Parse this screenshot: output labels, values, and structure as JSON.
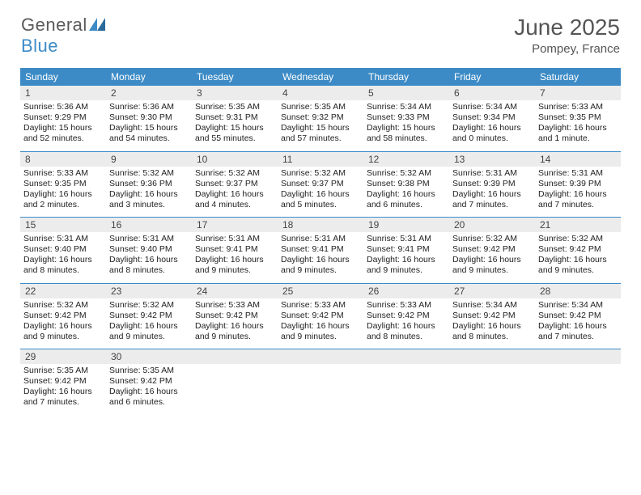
{
  "logo": {
    "text_a": "General",
    "text_b": "Blue",
    "mark_color": "#3c8bc6"
  },
  "title": {
    "month": "June 2025",
    "location": "Pompey, France"
  },
  "colors": {
    "header_bg": "#3c8bc6",
    "daynum_bg": "#ececec",
    "rule": "#3c8bc6"
  },
  "days_of_week": [
    "Sunday",
    "Monday",
    "Tuesday",
    "Wednesday",
    "Thursday",
    "Friday",
    "Saturday"
  ],
  "weeks": [
    [
      {
        "n": 1,
        "sr": "5:36 AM",
        "ss": "9:29 PM",
        "dl": "15 hours and 52 minutes."
      },
      {
        "n": 2,
        "sr": "5:36 AM",
        "ss": "9:30 PM",
        "dl": "15 hours and 54 minutes."
      },
      {
        "n": 3,
        "sr": "5:35 AM",
        "ss": "9:31 PM",
        "dl": "15 hours and 55 minutes."
      },
      {
        "n": 4,
        "sr": "5:35 AM",
        "ss": "9:32 PM",
        "dl": "15 hours and 57 minutes."
      },
      {
        "n": 5,
        "sr": "5:34 AM",
        "ss": "9:33 PM",
        "dl": "15 hours and 58 minutes."
      },
      {
        "n": 6,
        "sr": "5:34 AM",
        "ss": "9:34 PM",
        "dl": "16 hours and 0 minutes."
      },
      {
        "n": 7,
        "sr": "5:33 AM",
        "ss": "9:35 PM",
        "dl": "16 hours and 1 minute."
      }
    ],
    [
      {
        "n": 8,
        "sr": "5:33 AM",
        "ss": "9:35 PM",
        "dl": "16 hours and 2 minutes."
      },
      {
        "n": 9,
        "sr": "5:32 AM",
        "ss": "9:36 PM",
        "dl": "16 hours and 3 minutes."
      },
      {
        "n": 10,
        "sr": "5:32 AM",
        "ss": "9:37 PM",
        "dl": "16 hours and 4 minutes."
      },
      {
        "n": 11,
        "sr": "5:32 AM",
        "ss": "9:37 PM",
        "dl": "16 hours and 5 minutes."
      },
      {
        "n": 12,
        "sr": "5:32 AM",
        "ss": "9:38 PM",
        "dl": "16 hours and 6 minutes."
      },
      {
        "n": 13,
        "sr": "5:31 AM",
        "ss": "9:39 PM",
        "dl": "16 hours and 7 minutes."
      },
      {
        "n": 14,
        "sr": "5:31 AM",
        "ss": "9:39 PM",
        "dl": "16 hours and 7 minutes."
      }
    ],
    [
      {
        "n": 15,
        "sr": "5:31 AM",
        "ss": "9:40 PM",
        "dl": "16 hours and 8 minutes."
      },
      {
        "n": 16,
        "sr": "5:31 AM",
        "ss": "9:40 PM",
        "dl": "16 hours and 8 minutes."
      },
      {
        "n": 17,
        "sr": "5:31 AM",
        "ss": "9:41 PM",
        "dl": "16 hours and 9 minutes."
      },
      {
        "n": 18,
        "sr": "5:31 AM",
        "ss": "9:41 PM",
        "dl": "16 hours and 9 minutes."
      },
      {
        "n": 19,
        "sr": "5:31 AM",
        "ss": "9:41 PM",
        "dl": "16 hours and 9 minutes."
      },
      {
        "n": 20,
        "sr": "5:32 AM",
        "ss": "9:42 PM",
        "dl": "16 hours and 9 minutes."
      },
      {
        "n": 21,
        "sr": "5:32 AM",
        "ss": "9:42 PM",
        "dl": "16 hours and 9 minutes."
      }
    ],
    [
      {
        "n": 22,
        "sr": "5:32 AM",
        "ss": "9:42 PM",
        "dl": "16 hours and 9 minutes."
      },
      {
        "n": 23,
        "sr": "5:32 AM",
        "ss": "9:42 PM",
        "dl": "16 hours and 9 minutes."
      },
      {
        "n": 24,
        "sr": "5:33 AM",
        "ss": "9:42 PM",
        "dl": "16 hours and 9 minutes."
      },
      {
        "n": 25,
        "sr": "5:33 AM",
        "ss": "9:42 PM",
        "dl": "16 hours and 9 minutes."
      },
      {
        "n": 26,
        "sr": "5:33 AM",
        "ss": "9:42 PM",
        "dl": "16 hours and 8 minutes."
      },
      {
        "n": 27,
        "sr": "5:34 AM",
        "ss": "9:42 PM",
        "dl": "16 hours and 8 minutes."
      },
      {
        "n": 28,
        "sr": "5:34 AM",
        "ss": "9:42 PM",
        "dl": "16 hours and 7 minutes."
      }
    ],
    [
      {
        "n": 29,
        "sr": "5:35 AM",
        "ss": "9:42 PM",
        "dl": "16 hours and 7 minutes."
      },
      {
        "n": 30,
        "sr": "5:35 AM",
        "ss": "9:42 PM",
        "dl": "16 hours and 6 minutes."
      },
      null,
      null,
      null,
      null,
      null
    ]
  ],
  "labels": {
    "sunrise": "Sunrise:",
    "sunset": "Sunset:",
    "daylight": "Daylight:"
  }
}
